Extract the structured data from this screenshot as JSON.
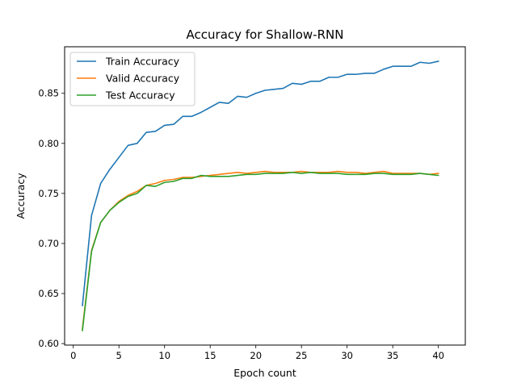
{
  "chart_data": {
    "type": "line",
    "title": "Accuracy for Shallow-RNN",
    "xlabel": "Epoch count",
    "ylabel": "Accuracy",
    "xlim": [
      -0.95,
      42.95
    ],
    "ylim": [
      0.5985,
      0.8965
    ],
    "xticks": [
      0,
      5,
      10,
      15,
      20,
      25,
      30,
      35,
      40
    ],
    "yticks": [
      0.6,
      0.65,
      0.7,
      0.75,
      0.8,
      0.85
    ],
    "ytick_labels": [
      "0.60",
      "0.65",
      "0.70",
      "0.75",
      "0.80",
      "0.85"
    ],
    "grid": false,
    "legend_position": "upper-left",
    "x": [
      1,
      2,
      3,
      4,
      5,
      6,
      7,
      8,
      9,
      10,
      11,
      12,
      13,
      14,
      15,
      16,
      17,
      18,
      19,
      20,
      21,
      22,
      23,
      24,
      25,
      26,
      27,
      28,
      29,
      30,
      31,
      32,
      33,
      34,
      35,
      36,
      37,
      38,
      39,
      40
    ],
    "series": [
      {
        "name": "Train Accuracy",
        "color": "#1f77b4",
        "values": [
          0.638,
          0.728,
          0.76,
          0.774,
          0.786,
          0.798,
          0.8,
          0.811,
          0.812,
          0.818,
          0.819,
          0.827,
          0.827,
          0.831,
          0.836,
          0.841,
          0.84,
          0.847,
          0.846,
          0.85,
          0.853,
          0.854,
          0.855,
          0.86,
          0.859,
          0.862,
          0.862,
          0.866,
          0.866,
          0.869,
          0.869,
          0.87,
          0.87,
          0.874,
          0.877,
          0.877,
          0.877,
          0.881,
          0.88,
          0.882
        ]
      },
      {
        "name": "Valid Accuracy",
        "color": "#ff7f0e",
        "values": [
          0.615,
          0.693,
          0.721,
          0.733,
          0.742,
          0.748,
          0.752,
          0.758,
          0.76,
          0.763,
          0.764,
          0.766,
          0.766,
          0.767,
          0.768,
          0.769,
          0.77,
          0.771,
          0.77,
          0.771,
          0.772,
          0.771,
          0.771,
          0.771,
          0.772,
          0.771,
          0.771,
          0.771,
          0.772,
          0.771,
          0.771,
          0.77,
          0.771,
          0.772,
          0.77,
          0.77,
          0.77,
          0.77,
          0.769,
          0.77
        ]
      },
      {
        "name": "Test Accuracy",
        "color": "#2ca02c",
        "values": [
          0.613,
          0.692,
          0.721,
          0.733,
          0.741,
          0.747,
          0.75,
          0.758,
          0.757,
          0.761,
          0.762,
          0.765,
          0.765,
          0.768,
          0.767,
          0.767,
          0.767,
          0.768,
          0.769,
          0.769,
          0.77,
          0.77,
          0.77,
          0.771,
          0.77,
          0.771,
          0.77,
          0.77,
          0.77,
          0.769,
          0.769,
          0.769,
          0.77,
          0.77,
          0.769,
          0.769,
          0.769,
          0.77,
          0.769,
          0.768
        ]
      }
    ]
  }
}
